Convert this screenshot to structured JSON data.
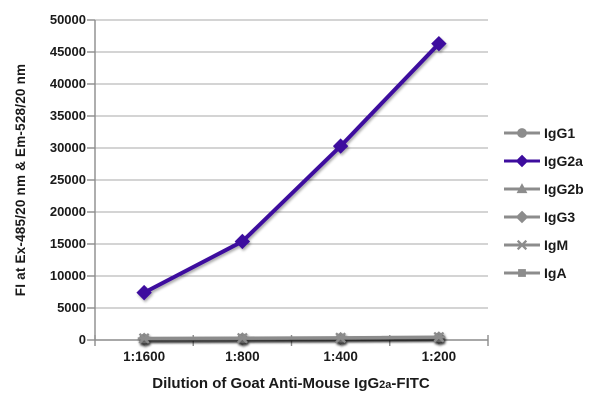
{
  "chart_data": {
    "type": "line",
    "title": "",
    "ylabel": "FI at Ex-485/20 nm & Em-528/20 nm",
    "xlabel_parts": {
      "prefix": "Dilution of Goat Anti-Mouse IgG",
      "sub": "2a",
      "suffix": "-FITC"
    },
    "x_categories": [
      "1:1600",
      "1:800",
      "1:400",
      "1:200"
    ],
    "y_ticks": [
      0,
      5000,
      10000,
      15000,
      20000,
      25000,
      30000,
      35000,
      40000,
      45000,
      50000
    ],
    "ylim": [
      0,
      50000
    ],
    "grid": "horizontal",
    "legend_position": "right",
    "series": [
      {
        "name": "IgG1",
        "marker": "circle",
        "color": "#8C8C8C",
        "values": [
          150,
          200,
          250,
          350
        ]
      },
      {
        "name": "IgG2a",
        "marker": "diamond",
        "color": "#3D0D9E",
        "values": [
          7400,
          15400,
          30300,
          46300
        ]
      },
      {
        "name": "IgG2b",
        "marker": "triangle",
        "color": "#8C8C8C",
        "values": [
          180,
          220,
          280,
          380
        ]
      },
      {
        "name": "IgG3",
        "marker": "diamond",
        "color": "#8C8C8C",
        "values": [
          120,
          170,
          230,
          330
        ]
      },
      {
        "name": "IgM",
        "marker": "asterisk",
        "color": "#8C8C8C",
        "values": [
          250,
          300,
          350,
          450
        ]
      },
      {
        "name": "IgA",
        "marker": "square",
        "color": "#8C8C8C",
        "values": [
          200,
          250,
          300,
          400
        ]
      }
    ]
  },
  "colors": {
    "accent_purple": "#3D0D9E",
    "series_gray": "#8C8C8C",
    "gridline": "#A8A8A8",
    "axis": "#8C8C8C",
    "text": "#1A1A1A",
    "background": "#FFFFFF"
  }
}
